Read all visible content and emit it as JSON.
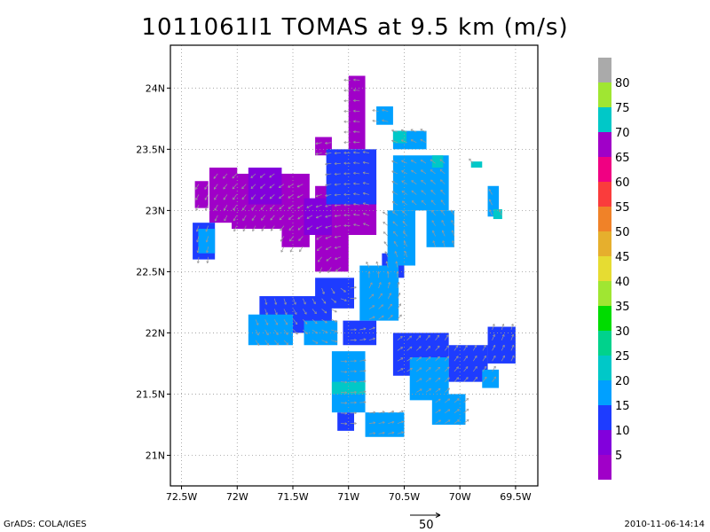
{
  "title": "1011061I1 TOMAS at 9.5 km (m/s)",
  "footer": {
    "left": "GrADS: COLA/IGES",
    "right": "2010-11-06-14:14",
    "reference_vector_label": "50"
  },
  "chart_data": {
    "type": "heatmap",
    "title": "1011061I1 TOMAS at 9.5 km (m/s)",
    "xlabel": "",
    "ylabel": "",
    "x_ticks": [
      "72.5W",
      "72W",
      "71.5W",
      "71W",
      "70.5W",
      "70W",
      "69.5W"
    ],
    "x_values": [
      -72.5,
      -72.0,
      -71.5,
      -71.0,
      -70.5,
      -70.0,
      -69.5
    ],
    "y_ticks": [
      "24N",
      "23.5N",
      "23N",
      "22.5N",
      "22N",
      "21.5N",
      "21N"
    ],
    "y_values": [
      24.0,
      23.5,
      23.0,
      22.5,
      22.0,
      21.5,
      21.0
    ],
    "xlim": [
      -72.6,
      -69.3
    ],
    "ylim": [
      20.75,
      24.35
    ],
    "grid": true,
    "colorbar": {
      "position": "right",
      "labels": [
        "5",
        "10",
        "15",
        "20",
        "25",
        "30",
        "35",
        "40",
        "45",
        "50",
        "55",
        "60",
        "65",
        "70",
        "75",
        "80"
      ],
      "colors": [
        "#a000c8",
        "#8200dc",
        "#1e3cff",
        "#00a0ff",
        "#00c8c8",
        "#00d28c",
        "#00dc00",
        "#a0e632",
        "#e6dc32",
        "#e6af2d",
        "#f08228",
        "#fa3c3c",
        "#f00082",
        "#a000c8",
        "#00c8c8",
        "#a0e632",
        "#aaaaaa"
      ]
    },
    "regions": [
      {
        "level": "5",
        "color": "#a000c8",
        "cells": [
          [
            -72.38,
            23.02,
            0.12,
            0.22
          ],
          [
            -72.25,
            22.9,
            0.25,
            0.45
          ],
          [
            -72.05,
            22.85,
            0.55,
            0.45
          ],
          [
            -71.6,
            22.7,
            0.25,
            0.6
          ],
          [
            -71.3,
            22.5,
            0.3,
            0.7
          ],
          [
            -71.05,
            22.8,
            0.3,
            0.45
          ],
          [
            -71.0,
            23.5,
            0.15,
            0.6
          ],
          [
            -71.3,
            23.45,
            0.15,
            0.15
          ]
        ]
      },
      {
        "level": "10",
        "color": "#8200dc",
        "cells": [
          [
            -71.9,
            23.05,
            0.3,
            0.3
          ],
          [
            -71.4,
            22.8,
            0.25,
            0.3
          ]
        ]
      },
      {
        "level": "15",
        "color": "#1e3cff",
        "cells": [
          [
            -72.4,
            22.6,
            0.2,
            0.3
          ],
          [
            -71.2,
            23.05,
            0.45,
            0.45
          ],
          [
            -71.8,
            22.0,
            0.65,
            0.3
          ],
          [
            -71.3,
            22.2,
            0.35,
            0.25
          ],
          [
            -71.05,
            21.9,
            0.3,
            0.2
          ],
          [
            -70.6,
            21.65,
            0.5,
            0.35
          ],
          [
            -70.1,
            21.6,
            0.35,
            0.3
          ],
          [
            -69.75,
            21.75,
            0.25,
            0.3
          ],
          [
            -71.1,
            21.2,
            0.15,
            0.15
          ],
          [
            -70.7,
            22.45,
            0.2,
            0.2
          ]
        ]
      },
      {
        "level": "20",
        "color": "#00a0ff",
        "cells": [
          [
            -72.35,
            22.65,
            0.15,
            0.2
          ],
          [
            -71.9,
            21.9,
            0.4,
            0.25
          ],
          [
            -71.4,
            21.9,
            0.3,
            0.2
          ],
          [
            -70.9,
            22.1,
            0.35,
            0.45
          ],
          [
            -70.65,
            22.55,
            0.25,
            0.45
          ],
          [
            -71.15,
            21.35,
            0.3,
            0.5
          ],
          [
            -70.85,
            21.15,
            0.35,
            0.2
          ],
          [
            -70.45,
            21.45,
            0.35,
            0.35
          ],
          [
            -70.25,
            21.25,
            0.3,
            0.25
          ],
          [
            -70.6,
            23.0,
            0.5,
            0.45
          ],
          [
            -70.3,
            22.7,
            0.25,
            0.3
          ],
          [
            -70.6,
            23.5,
            0.3,
            0.15
          ],
          [
            -69.75,
            22.95,
            0.1,
            0.25
          ],
          [
            -69.8,
            21.55,
            0.15,
            0.15
          ],
          [
            -70.75,
            23.7,
            0.15,
            0.15
          ]
        ]
      },
      {
        "level": "25",
        "color": "#00c8c8",
        "cells": [
          [
            -71.15,
            21.5,
            0.3,
            0.1
          ],
          [
            -70.6,
            23.55,
            0.12,
            0.1
          ],
          [
            -70.25,
            23.35,
            0.1,
            0.1
          ],
          [
            -69.9,
            23.35,
            0.1,
            0.05
          ],
          [
            -69.7,
            22.93,
            0.08,
            0.08
          ]
        ]
      }
    ],
    "vector_field": {
      "reference_vector_ms": 50,
      "color": "#999999"
    }
  }
}
